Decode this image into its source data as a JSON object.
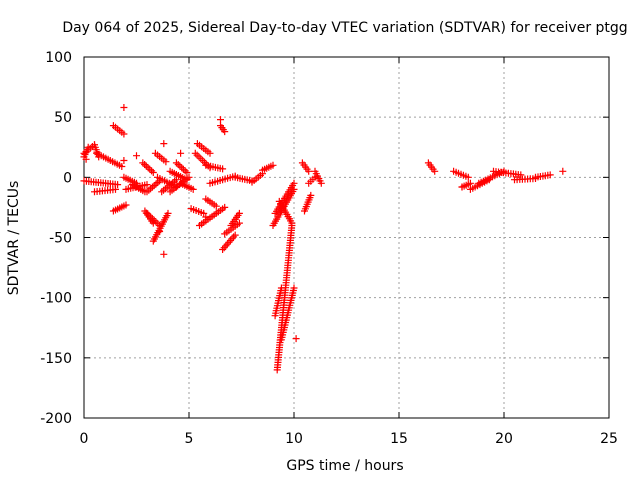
{
  "chart_data": {
    "type": "scatter",
    "title": "Day 064 of 2025, Sidereal Day-to-day VTEC variation (SDTVAR) for receiver ptgg",
    "xlabel": "GPS time / hours",
    "ylabel": "SDTVAR / TECUs",
    "xlim": [
      0,
      25
    ],
    "ylim": [
      -200,
      100
    ],
    "xticks": [
      0,
      5,
      10,
      15,
      20,
      25
    ],
    "yticks": [
      100,
      50,
      0,
      -50,
      -100,
      -150,
      -200
    ],
    "grid": true,
    "marker": "+",
    "color": "#ff0000",
    "series": [
      {
        "segments": [
          {
            "x": [
              0.0,
              0.5
            ],
            "y": [
              20,
              27
            ]
          },
          {
            "x": [
              0.5,
              0.7
            ],
            "y": [
              27,
              17
            ]
          },
          {
            "x": [
              0.0,
              0.2
            ],
            "y": [
              17,
              25
            ]
          },
          {
            "x": [
              0.0,
              1.6
            ],
            "y": [
              -3,
              -6
            ]
          },
          {
            "x": [
              0.5,
              1.5
            ],
            "y": [
              -12,
              -10
            ]
          },
          {
            "x": [
              0.6,
              1.8
            ],
            "y": [
              20,
              9
            ]
          },
          {
            "x": [
              1.4,
              1.9
            ],
            "y": [
              43,
              36
            ]
          },
          {
            "x": [
              1.4,
              2.0
            ],
            "y": [
              -28,
              -23
            ]
          },
          {
            "x": [
              1.9,
              2.5
            ],
            "y": [
              0,
              -5
            ]
          },
          {
            "x": [
              2.0,
              3.0
            ],
            "y": [
              -10,
              -6
            ]
          },
          {
            "x": [
              2.3,
              2.9
            ],
            "y": [
              -6,
              -12
            ]
          },
          {
            "x": [
              2.8,
              3.3
            ],
            "y": [
              12,
              4
            ]
          },
          {
            "x": [
              2.9,
              3.3
            ],
            "y": [
              -28,
              -38
            ]
          },
          {
            "x": [
              3.0,
              3.6
            ],
            "y": [
              -30,
              -40
            ]
          },
          {
            "x": [
              3.0,
              3.6
            ],
            "y": [
              -12,
              -3
            ]
          },
          {
            "x": [
              3.3,
              4.0
            ],
            "y": [
              -53,
              -30
            ]
          },
          {
            "x": [
              3.4,
              3.9
            ],
            "y": [
              20,
              13
            ]
          },
          {
            "x": [
              3.5,
              4.4
            ],
            "y": [
              0,
              -8
            ]
          },
          {
            "x": [
              3.7,
              4.4
            ],
            "y": [
              -12,
              -2
            ]
          },
          {
            "x": [
              4.1,
              4.9
            ],
            "y": [
              5,
              -2
            ]
          },
          {
            "x": [
              4.1,
              5.0
            ],
            "y": [
              -12,
              0
            ]
          },
          {
            "x": [
              4.4,
              4.9
            ],
            "y": [
              12,
              4
            ]
          },
          {
            "x": [
              4.6,
              5.2
            ],
            "y": [
              -5,
              -10
            ]
          },
          {
            "x": [
              5.1,
              5.7
            ],
            "y": [
              -26,
              -30
            ]
          },
          {
            "x": [
              5.3,
              6.0
            ],
            "y": [
              20,
              8
            ]
          },
          {
            "x": [
              5.4,
              6.0
            ],
            "y": [
              28,
              20
            ]
          },
          {
            "x": [
              5.5,
              6.7
            ],
            "y": [
              -40,
              -25
            ]
          },
          {
            "x": [
              5.8,
              6.3
            ],
            "y": [
              -18,
              -24
            ]
          },
          {
            "x": [
              5.8,
              6.6
            ],
            "y": [
              10,
              7
            ]
          },
          {
            "x": [
              6.0,
              7.2
            ],
            "y": [
              -5,
              1
            ]
          },
          {
            "x": [
              6.5,
              6.7
            ],
            "y": [
              43,
              38
            ]
          },
          {
            "x": [
              6.6,
              7.2
            ],
            "y": [
              -60,
              -48
            ]
          },
          {
            "x": [
              6.7,
              7.4
            ],
            "y": [
              -47,
              -38
            ]
          },
          {
            "x": [
              7.0,
              7.4
            ],
            "y": [
              -40,
              -30
            ]
          },
          {
            "x": [
              7.2,
              8.0
            ],
            "y": [
              0,
              -3
            ]
          },
          {
            "x": [
              8.0,
              8.5
            ],
            "y": [
              -4,
              3
            ]
          },
          {
            "x": [
              8.5,
              9.0
            ],
            "y": [
              6,
              10
            ]
          },
          {
            "x": [
              9.0,
              10.0
            ],
            "y": [
              -40,
              -10
            ]
          },
          {
            "x": [
              9.1,
              10.0
            ],
            "y": [
              -30,
              -5
            ]
          },
          {
            "x": [
              9.3,
              9.9
            ],
            "y": [
              -20,
              -38
            ]
          },
          {
            "x": [
              9.2,
              9.9
            ],
            "y": [
              -160,
              -40
            ]
          },
          {
            "x": [
              9.4,
              10.0
            ],
            "y": [
              -135,
              -92
            ]
          },
          {
            "x": [
              9.1,
              9.4
            ],
            "y": [
              -115,
              -92
            ]
          },
          {
            "x": [
              10.4,
              10.7
            ],
            "y": [
              12,
              5
            ]
          },
          {
            "x": [
              10.5,
              10.8
            ],
            "y": [
              -28,
              -15
            ]
          },
          {
            "x": [
              10.7,
              11.0
            ],
            "y": [
              -5,
              0
            ]
          },
          {
            "x": [
              11.0,
              11.3
            ],
            "y": [
              5,
              -5
            ]
          },
          {
            "x": [
              16.4,
              16.7
            ],
            "y": [
              12,
              5
            ]
          },
          {
            "x": [
              17.6,
              18.3
            ],
            "y": [
              5,
              0
            ]
          },
          {
            "x": [
              18.0,
              18.4
            ],
            "y": [
              -8,
              -5
            ]
          },
          {
            "x": [
              18.4,
              19.3
            ],
            "y": [
              -10,
              -2
            ]
          },
          {
            "x": [
              18.8,
              20.0
            ],
            "y": [
              -5,
              5
            ]
          },
          {
            "x": [
              19.5,
              20.8
            ],
            "y": [
              5,
              2
            ]
          },
          {
            "x": [
              20.5,
              21.5
            ],
            "y": [
              -2,
              -1
            ]
          },
          {
            "x": [
              21.5,
              22.2
            ],
            "y": [
              0,
              2
            ]
          }
        ],
        "points": [
          {
            "x": 1.9,
            "y": 58
          },
          {
            "x": 6.5,
            "y": 48
          },
          {
            "x": 3.8,
            "y": -64
          },
          {
            "x": 3.8,
            "y": 28
          },
          {
            "x": 1.9,
            "y": 14
          },
          {
            "x": 2.5,
            "y": 18
          },
          {
            "x": 4.6,
            "y": 20
          },
          {
            "x": 5.8,
            "y": -33
          },
          {
            "x": 10.1,
            "y": -134
          },
          {
            "x": 18.0,
            "y": -8
          },
          {
            "x": 22.8,
            "y": 5
          },
          {
            "x": 0.1,
            "y": 15
          },
          {
            "x": 3.6,
            "y": -45
          }
        ]
      }
    ]
  }
}
